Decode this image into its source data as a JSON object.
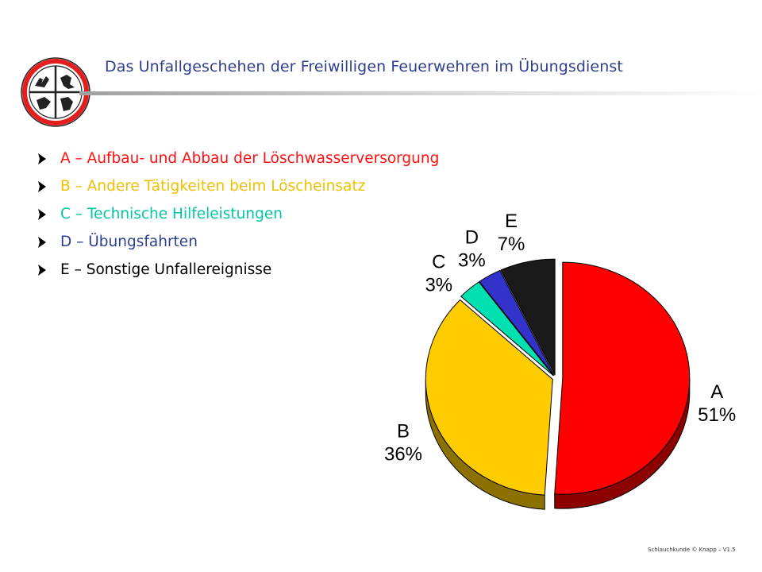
{
  "title": "Das Unfallgeschehen der Freiwilligen Feuerwehren im Übungsdienst",
  "legend": [
    {
      "text": "A – Aufbau- und Abbau der Löschwasserversorgung",
      "color": "#ff1010"
    },
    {
      "text": "B – Andere Tätigkeiten beim Löscheinsatz",
      "color": "#f0c000"
    },
    {
      "text": "C – Technische Hilfeleistungen",
      "color": "#00c8a0"
    },
    {
      "text": "D – Übungsfahrten",
      "color": "#2f3e8f"
    },
    {
      "text": "E – Sonstige Unfallereignisse",
      "color": "#000000"
    }
  ],
  "chart_data": {
    "type": "pie",
    "title": "",
    "slices": [
      {
        "name": "A",
        "label": "A",
        "value_label": "51%",
        "value": 51,
        "color": "#ff0000"
      },
      {
        "name": "B",
        "label": "B",
        "value_label": "36%",
        "value": 36,
        "color": "#ffcc00"
      },
      {
        "name": "C",
        "label": "C",
        "value_label": "3%",
        "value": 3,
        "color": "#00e0b0"
      },
      {
        "name": "D",
        "label": "D",
        "value_label": "3%",
        "value": 3,
        "color": "#3333cc"
      },
      {
        "name": "E",
        "label": "E",
        "value_label": "7%",
        "value": 7,
        "color": "#1a1a1a"
      }
    ],
    "exploded": true,
    "style": "3d"
  },
  "footer": "Schlauchkunde  © Knapp – V1.5"
}
